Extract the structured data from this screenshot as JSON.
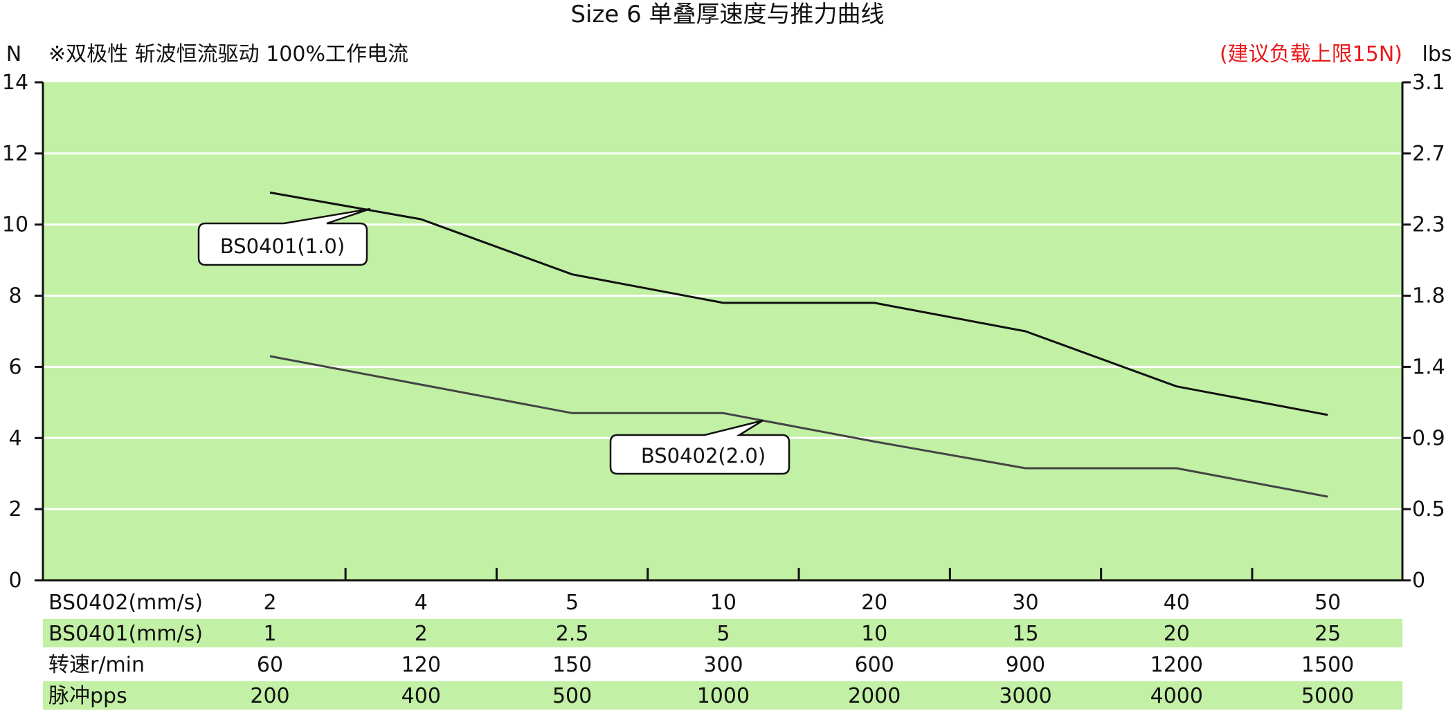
{
  "chart_data": {
    "type": "line",
    "title": "Size 6 单叠厚速度与推力曲线",
    "note": "※双极性 斩波恒流驱动 100%工作电流",
    "warning": "(建议负载上限15N)",
    "ylabel_left": "N",
    "ylabel_right": "lbs",
    "ylim": [
      0,
      14
    ],
    "yticks_left": [
      "0",
      "2",
      "4",
      "6",
      "8",
      "10",
      "12",
      "14"
    ],
    "yticks_right": [
      "0",
      "0.5",
      "0.9",
      "1.4",
      "1.8",
      "2.3",
      "2.7",
      "3.1"
    ],
    "grid": true,
    "background_color": "#c2f0a5",
    "table": {
      "rows": [
        {
          "label": "BS0402(mm/s)",
          "values": [
            "2",
            "4",
            "5",
            "10",
            "20",
            "30",
            "40",
            "50"
          ],
          "shaded": false
        },
        {
          "label": "BS0401(mm/s)",
          "values": [
            "1",
            "2",
            "2.5",
            "5",
            "10",
            "15",
            "20",
            "25"
          ],
          "shaded": true
        },
        {
          "label": "转速r/min",
          "values": [
            "60",
            "120",
            "150",
            "300",
            "600",
            "900",
            "1200",
            "1500"
          ],
          "shaded": false
        },
        {
          "label": "脉冲pps",
          "values": [
            "200",
            "400",
            "500",
            "1000",
            "2000",
            "3000",
            "4000",
            "5000"
          ],
          "shaded": true
        }
      ]
    },
    "series": [
      {
        "name": "BS0401(1.0)",
        "color": "#111111",
        "values": [
          10.9,
          10.15,
          8.6,
          7.8,
          7.8,
          7.0,
          5.45,
          4.65
        ]
      },
      {
        "name": "BS0402(2.0)",
        "color": "#444444",
        "values": [
          6.3,
          5.5,
          4.7,
          4.7,
          3.9,
          3.15,
          3.15,
          2.35
        ]
      }
    ]
  }
}
